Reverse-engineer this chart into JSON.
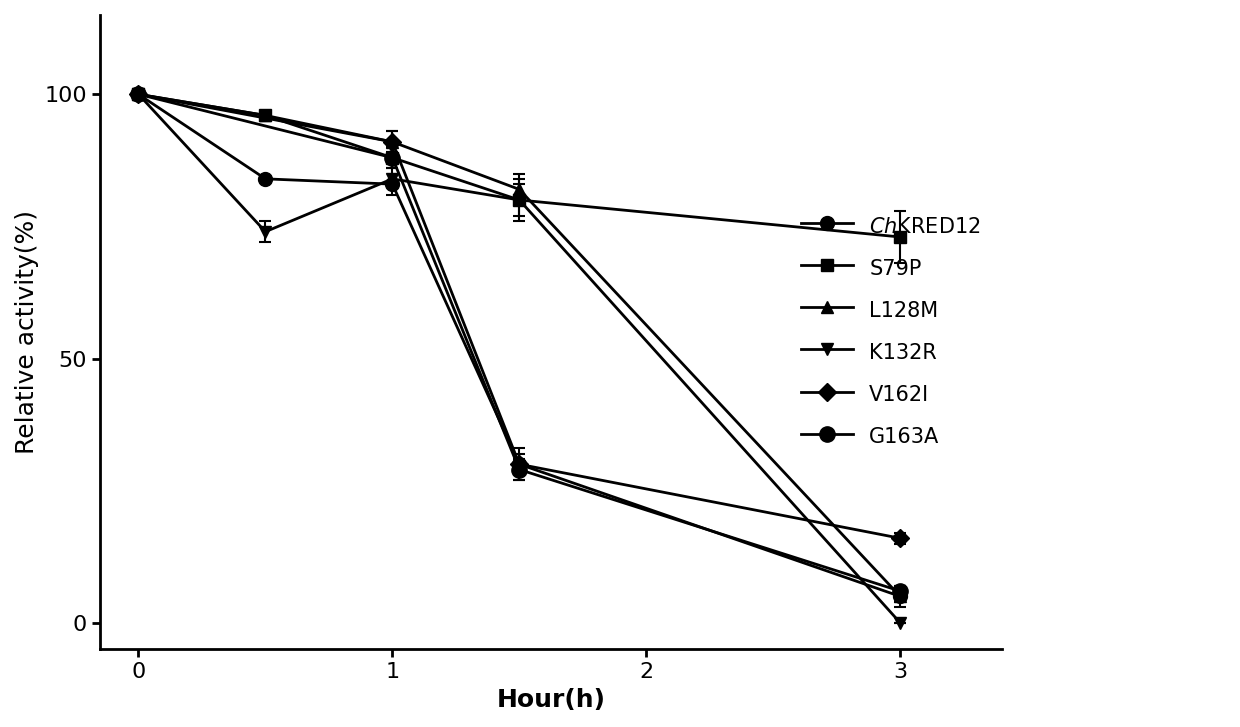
{
  "series": [
    {
      "label": "ChKRED12",
      "x": [
        0,
        0.5,
        1,
        1.5,
        3
      ],
      "y": [
        100,
        84,
        83,
        30,
        5
      ],
      "yerr": [
        0,
        0,
        0,
        3,
        2
      ],
      "marker": "o",
      "markersize": 10,
      "linewidth": 2
    },
    {
      "label": "S79P",
      "x": [
        0,
        0.5,
        1,
        1.5,
        3
      ],
      "y": [
        100,
        96,
        88,
        80,
        73
      ],
      "yerr": [
        0,
        0,
        2,
        3,
        5
      ],
      "marker": "s",
      "markersize": 9,
      "linewidth": 2
    },
    {
      "label": "L128M",
      "x": [
        0,
        0.5,
        1,
        1.5,
        3
      ],
      "y": [
        100,
        96,
        91,
        82,
        5
      ],
      "yerr": [
        0,
        0,
        2,
        3,
        1
      ],
      "marker": "^",
      "markersize": 9,
      "linewidth": 2
    },
    {
      "label": "K132R",
      "x": [
        0,
        0.5,
        1,
        1.5,
        3
      ],
      "y": [
        100,
        74,
        84,
        80,
        0
      ],
      "yerr": [
        0,
        2,
        3,
        4,
        0
      ],
      "marker": "v",
      "markersize": 9,
      "linewidth": 2
    },
    {
      "label": "V162I",
      "x": [
        0,
        1,
        1.5,
        3
      ],
      "y": [
        100,
        91,
        30,
        16
      ],
      "yerr": [
        0,
        2,
        2,
        1
      ],
      "marker": "D",
      "markersize": 9,
      "linewidth": 2
    },
    {
      "label": "G163A",
      "x": [
        0,
        1,
        1.5,
        3
      ],
      "y": [
        100,
        88,
        29,
        6
      ],
      "yerr": [
        0,
        2,
        2,
        1
      ],
      "marker": "o",
      "markersize": 11,
      "linewidth": 2
    }
  ],
  "legend_labels": [
    "$\\it{Ch}$KRED12",
    "S79P",
    "L128M",
    "K132R",
    "V162I",
    "G163A"
  ],
  "legend_markers": [
    "o",
    "s",
    "^",
    "v",
    "D",
    "o"
  ],
  "legend_sizes": [
    10,
    9,
    9,
    9,
    9,
    11
  ],
  "xlabel": "Hour(h)",
  "ylabel": "Relative activity(%)",
  "xlim": [
    -0.15,
    3.4
  ],
  "ylim": [
    -5,
    115
  ],
  "xticks": [
    0,
    1,
    2,
    3
  ],
  "yticks": [
    0,
    50,
    100
  ],
  "color": "#000000",
  "background_color": "#ffffff",
  "fontsize_label": 18,
  "fontsize_tick": 16,
  "fontsize_legend": 15
}
